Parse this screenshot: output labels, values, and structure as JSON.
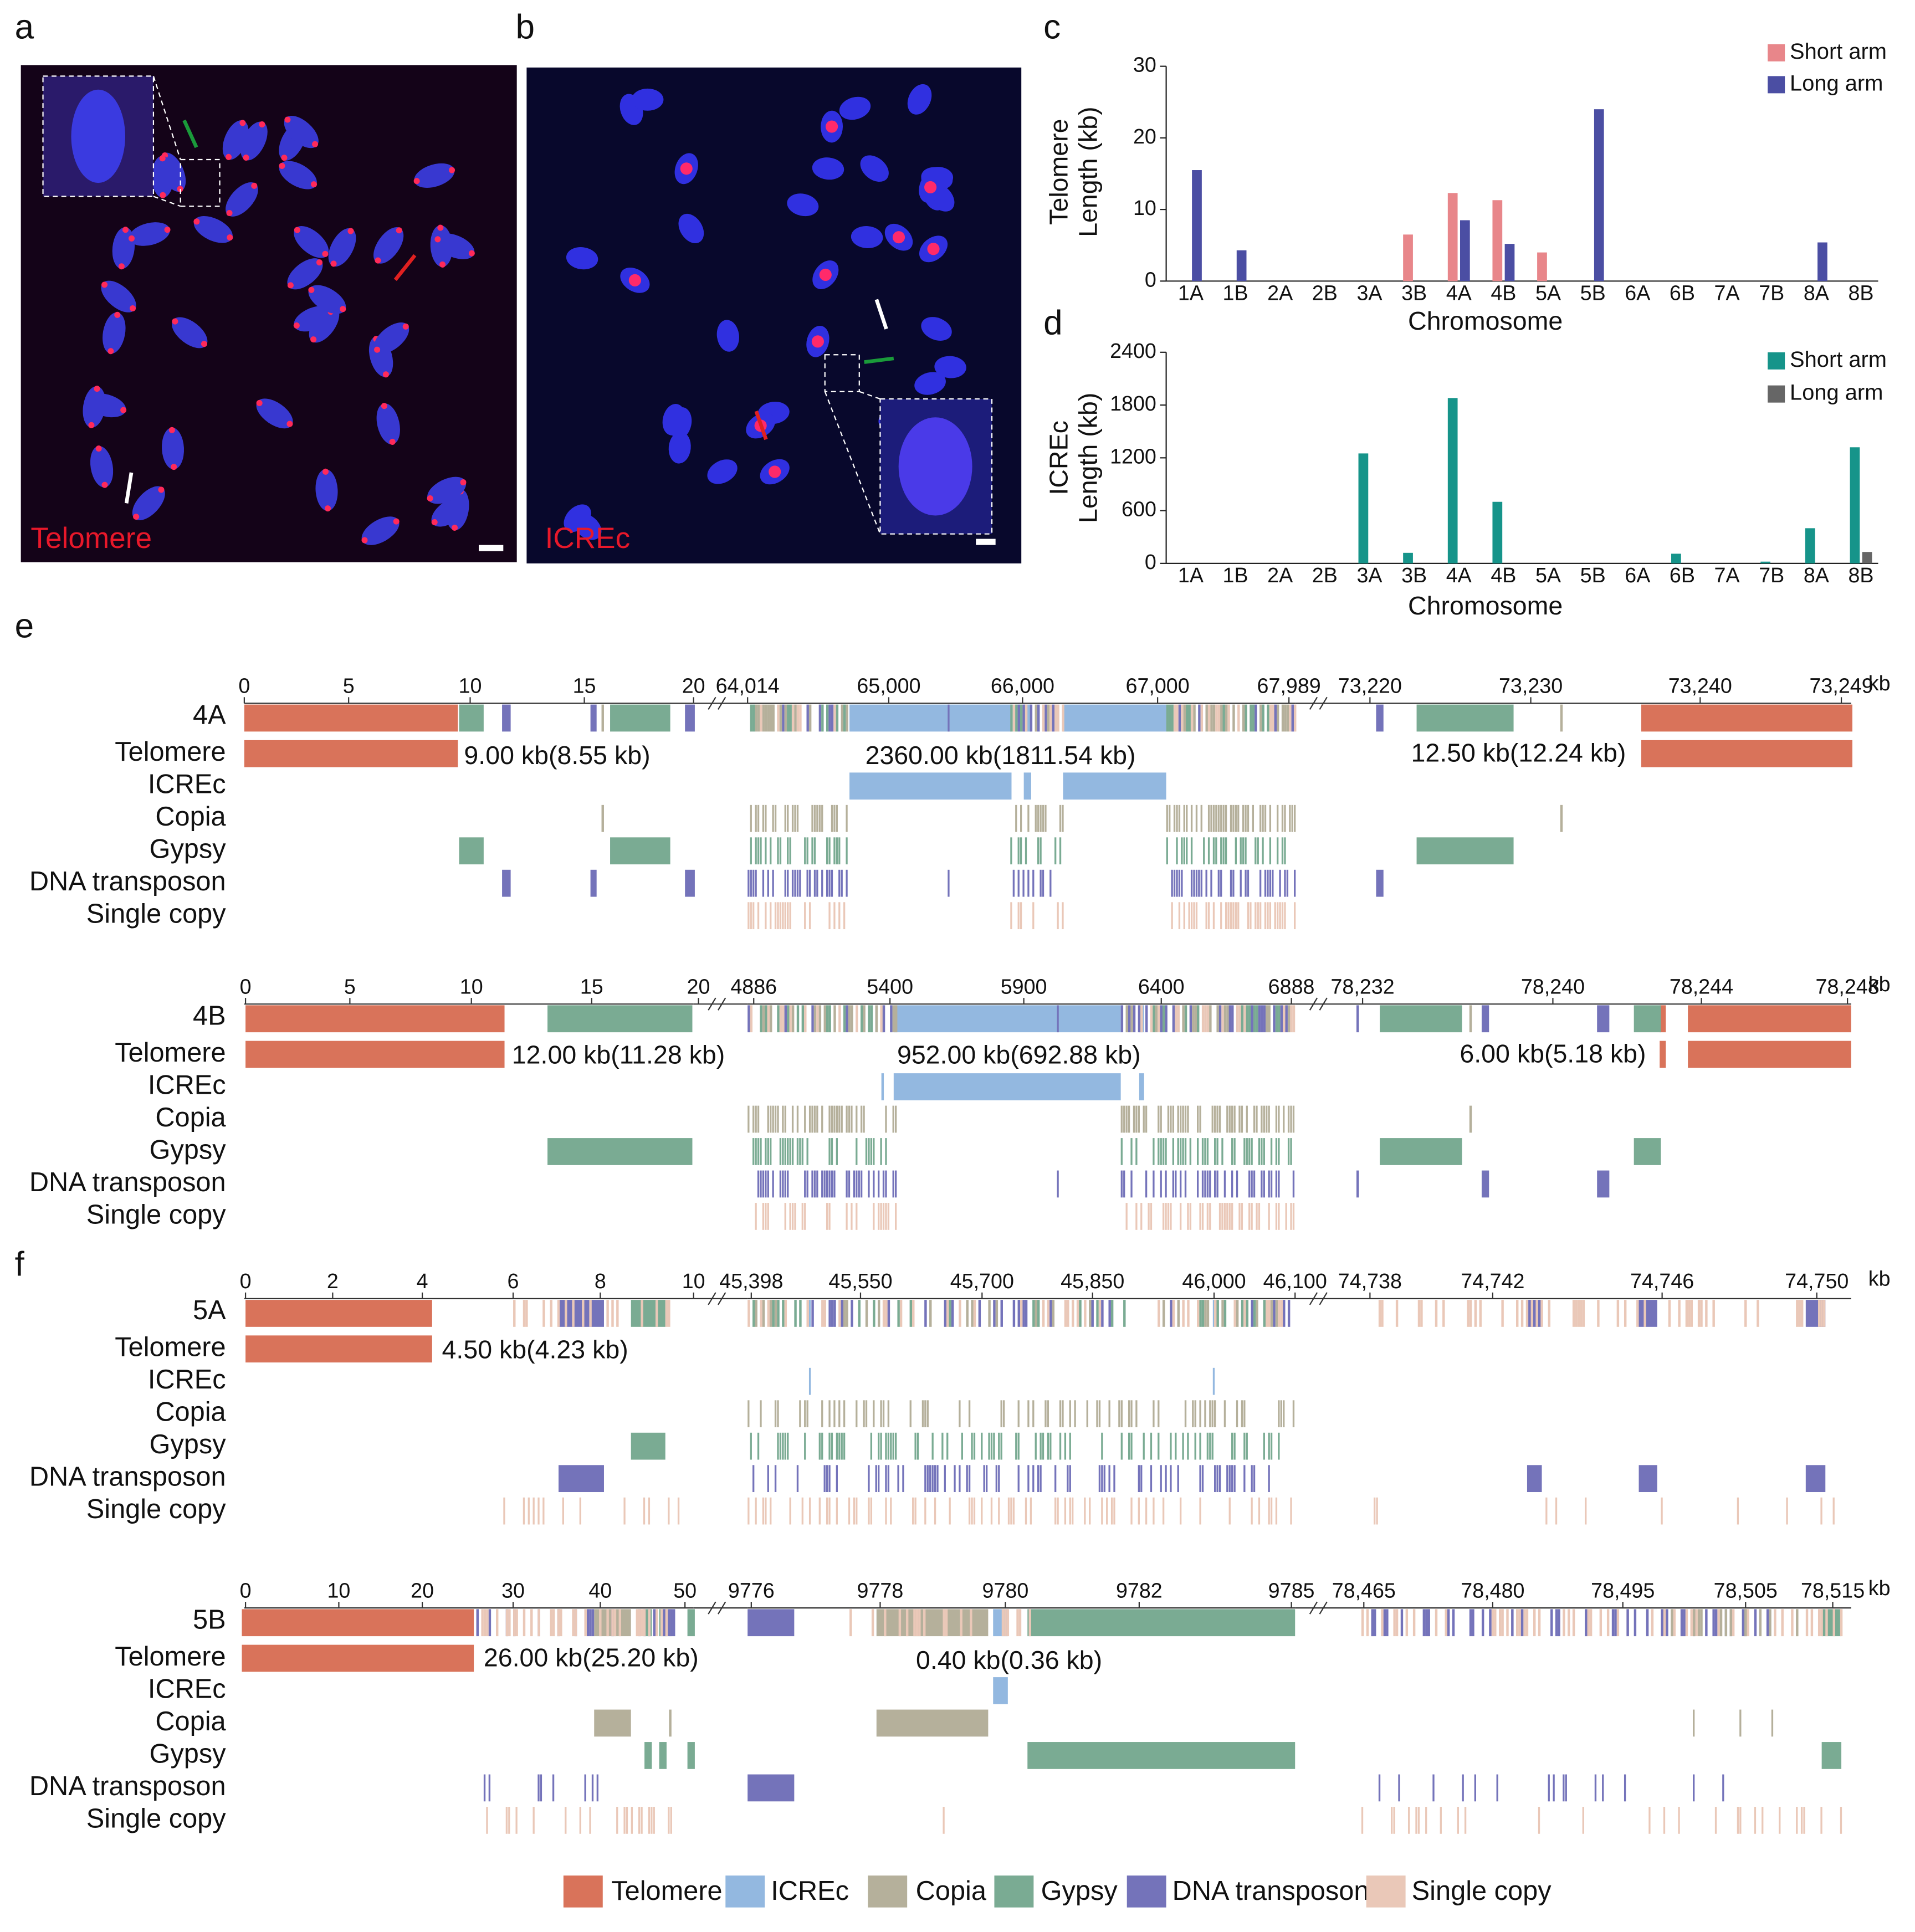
{
  "panel_labels": [
    "a",
    "b",
    "c",
    "d",
    "e",
    "f"
  ],
  "images": [
    {
      "label": "Telomere"
    },
    {
      "label": "ICREc"
    }
  ],
  "chart_data": [
    {
      "type": "bar",
      "xlabel": "Chromosome",
      "ylabel": [
        "Telomere",
        "Length (kb)"
      ],
      "categories": [
        "1A",
        "1B",
        "2A",
        "2B",
        "3A",
        "3B",
        "4A",
        "4B",
        "5A",
        "5B",
        "6A",
        "6B",
        "7A",
        "7B",
        "8A",
        "8B"
      ],
      "series": [
        {
          "name": "Short arm",
          "color": "#e8868a",
          "values": [
            0,
            0,
            0,
            0,
            0,
            6.5,
            12.3,
            11.3,
            4,
            0,
            0,
            0,
            0,
            0,
            0,
            0
          ]
        },
        {
          "name": "Long arm",
          "color": "#4b4ea3",
          "values": [
            15.5,
            4.3,
            0,
            0,
            0,
            0,
            8.5,
            5.2,
            0,
            24,
            0,
            0,
            0,
            0,
            5.4,
            0
          ]
        }
      ],
      "ylim": [
        0,
        30
      ],
      "yticks": [
        0,
        10,
        20,
        30
      ],
      "grid": false,
      "legend": "upper right"
    },
    {
      "type": "bar",
      "xlabel": "Chromosome",
      "ylabel": [
        "ICREc",
        "Length (kb)"
      ],
      "categories": [
        "1A",
        "1B",
        "2A",
        "2B",
        "3A",
        "3B",
        "4A",
        "4B",
        "5A",
        "5B",
        "6A",
        "6B",
        "7A",
        "7B",
        "8A",
        "8B"
      ],
      "series": [
        {
          "name": "Short arm",
          "color": "#16948a",
          "values": [
            0,
            0,
            0,
            0,
            1250,
            120,
            1880,
            700,
            0,
            0,
            0,
            110,
            0,
            20,
            400,
            1320
          ]
        },
        {
          "name": "Long arm",
          "color": "#666666",
          "values": [
            0,
            0,
            0,
            0,
            0,
            0,
            0,
            0,
            0,
            0,
            0,
            0,
            0,
            0,
            0,
            130
          ]
        }
      ],
      "ylim": [
        0,
        2400
      ],
      "yticks": [
        0,
        600,
        1200,
        1800,
        2400
      ],
      "grid": false,
      "legend": "upper right"
    }
  ],
  "track_labels": [
    "Telomere",
    "ICREc",
    "Copia",
    "Gypsy",
    "DNA transposon",
    "Single copy"
  ],
  "tracks": [
    {
      "chromosome": "4A",
      "ticks": [
        [
          "0",
          "5",
          "10",
          "15",
          "20"
        ],
        [
          "64,014",
          "65,000",
          "66,000",
          "67,000",
          "67,989"
        ],
        [
          "73,220",
          "73,230",
          "73,240",
          "73,249"
        ]
      ],
      "unit": "kb",
      "annotations": [
        "9.00 kb(8.55 kb)",
        "2360.00 kb(1811.54 kb)",
        "12.50 kb(12.24 kb)"
      ]
    },
    {
      "chromosome": "4B",
      "ticks": [
        [
          "0",
          "5",
          "10",
          "15",
          "20"
        ],
        [
          "4886",
          "5400",
          "5900",
          "6400",
          "6888"
        ],
        [
          "78,232",
          "78,240",
          "78,244",
          "78,248"
        ]
      ],
      "unit": "kb",
      "annotations": [
        "12.00 kb(11.28 kb)",
        "952.00 kb(692.88 kb)",
        "6.00 kb(5.18 kb)"
      ]
    },
    {
      "chromosome": "5A",
      "ticks": [
        [
          "0",
          "2",
          "4",
          "6",
          "8",
          "10"
        ],
        [
          "45,398",
          "45,550",
          "45,700",
          "45,850",
          "46,000",
          "46,100"
        ],
        [
          "74,738",
          "74,742",
          "74,746",
          "74,750"
        ]
      ],
      "unit": "kb",
      "annotations": [
        "4.50 kb(4.23 kb)"
      ]
    },
    {
      "chromosome": "5B",
      "ticks": [
        [
          "0",
          "10",
          "20",
          "30",
          "40",
          "50"
        ],
        [
          "9776",
          "9778",
          "9780",
          "9782",
          "9785"
        ],
        [
          "78,465",
          "78,480",
          "78,495",
          "78,505",
          "78,515"
        ]
      ],
      "unit": "kb",
      "annotations": [
        "26.00 kb(25.20 kb)",
        "0.40 kb(0.36 kb)"
      ]
    }
  ],
  "legend": [
    {
      "label": "Telomere",
      "color": "#d9735a"
    },
    {
      "label": "ICREc",
      "color": "#93b8e0"
    },
    {
      "label": "Copia",
      "color": "#b5b09b"
    },
    {
      "label": "Gypsy",
      "color": "#7aab93"
    },
    {
      "label": "DNA transposon",
      "color": "#7473ba"
    },
    {
      "label": "Single copy",
      "color": "#eac8b8"
    }
  ]
}
